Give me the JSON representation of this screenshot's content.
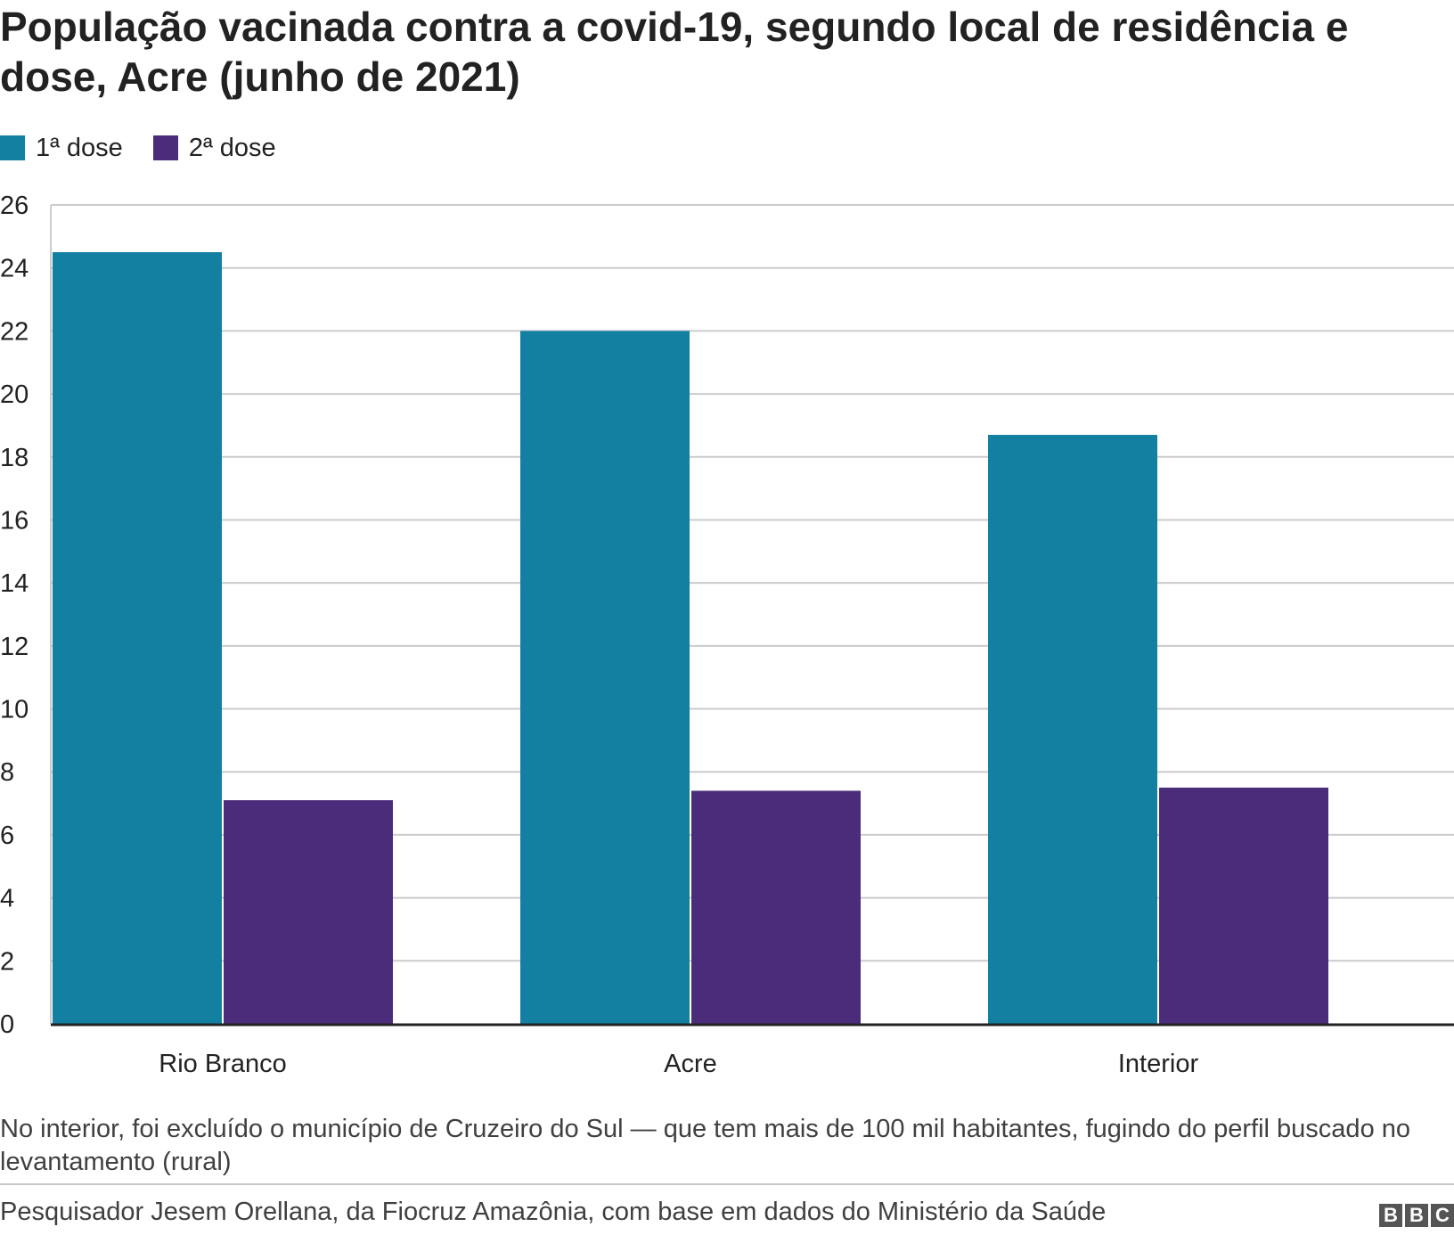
{
  "title": "População vacinada contra a covid-19, segundo local de residência e dose, Acre (junho de 2021)",
  "colors": {
    "dose1": "#1380A1",
    "dose2": "#4B2C7A",
    "grid": "#cbcbcb",
    "axis": "#222222"
  },
  "chart_data": {
    "type": "bar",
    "title": "População vacinada contra a covid-19, segundo local de residência e dose, Acre (junho de 2021)",
    "xlabel": "",
    "ylabel": "",
    "categories": [
      "Rio Branco",
      "Acre",
      "Interior"
    ],
    "series": [
      {
        "name": "1ª dose",
        "values": [
          24.5,
          22.0,
          18.7
        ]
      },
      {
        "name": "2ª dose",
        "values": [
          7.1,
          7.4,
          7.5
        ]
      }
    ],
    "ylim": [
      0,
      26
    ],
    "yticks": [
      0,
      2,
      4,
      6,
      8,
      10,
      12,
      14,
      16,
      18,
      20,
      22,
      24,
      26
    ],
    "grid": true,
    "legend": "top-left"
  },
  "note": "No interior, foi excluído o município de Cruzeiro do Sul — que tem mais de 100 mil habitantes, fugindo do perfil buscado no levantamento (rural)",
  "source": "Pesquisador Jesem Orellana, da Fiocruz Amazônia, com base em dados do Ministério da Saúde",
  "logo": [
    "B",
    "B",
    "C"
  ]
}
